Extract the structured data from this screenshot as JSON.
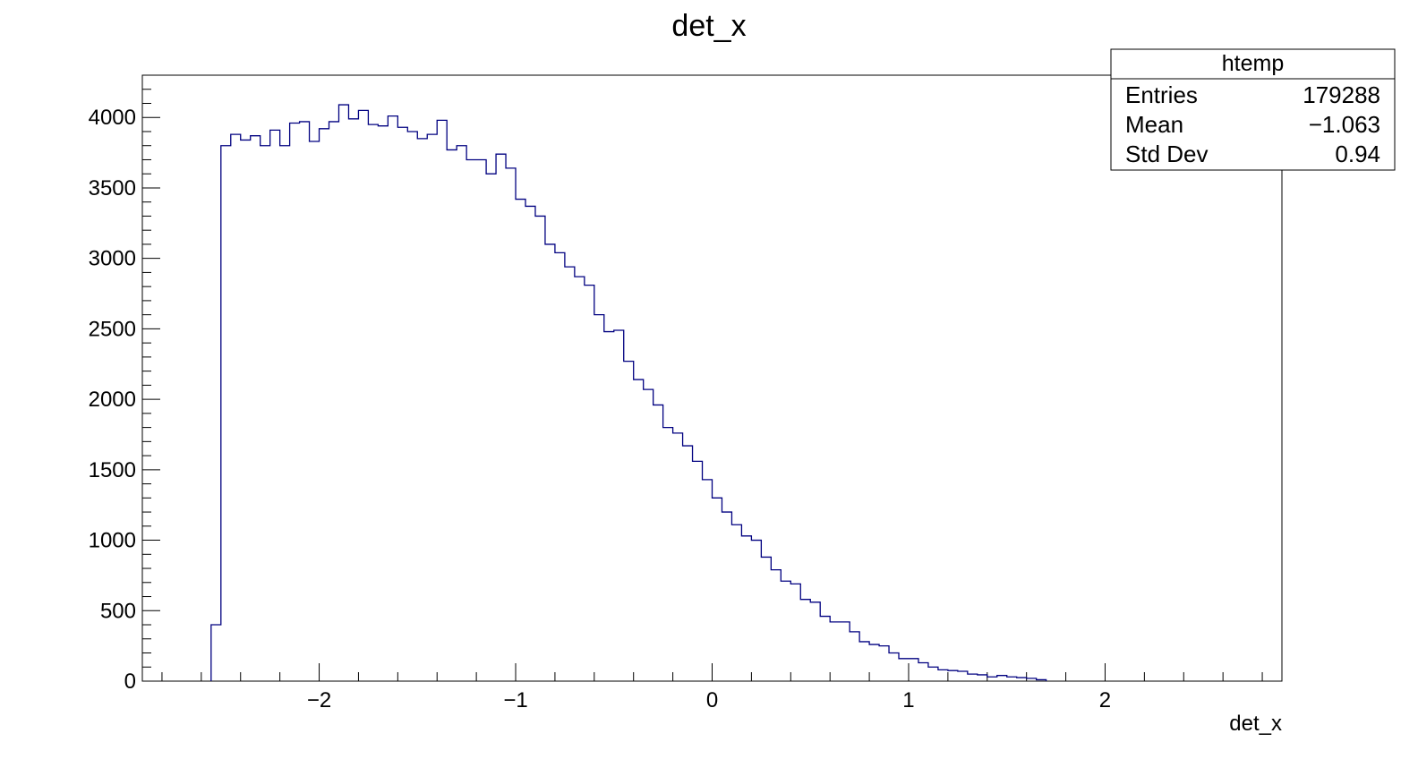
{
  "chart_data": {
    "type": "bar",
    "title": "det_x",
    "xlabel": "det_x",
    "ylabel": "",
    "x_range": [
      -2.9,
      2.9
    ],
    "ylim": [
      0,
      4300
    ],
    "x_ticks": [
      -2,
      -1,
      0,
      1,
      2
    ],
    "x_tick_labels": [
      "−2",
      "−1",
      "0",
      "1",
      "2"
    ],
    "y_ticks": [
      0,
      500,
      1000,
      1500,
      2000,
      2500,
      3000,
      3500,
      4000
    ],
    "y_tick_labels": [
      "0",
      "500",
      "1000",
      "1500",
      "2000",
      "2500",
      "3000",
      "3500",
      "4000"
    ],
    "bin_start": -2.55,
    "bin_width": 0.05,
    "values": [
      400,
      3800,
      3880,
      3840,
      3870,
      3800,
      3910,
      3800,
      3960,
      3970,
      3830,
      3920,
      3970,
      4090,
      3990,
      4050,
      3950,
      3940,
      4010,
      3930,
      3900,
      3850,
      3880,
      3980,
      3770,
      3800,
      3700,
      3700,
      3600,
      3740,
      3640,
      3420,
      3370,
      3300,
      3100,
      3040,
      2940,
      2870,
      2810,
      2600,
      2480,
      2490,
      2270,
      2140,
      2070,
      1960,
      1800,
      1760,
      1670,
      1560,
      1430,
      1300,
      1200,
      1110,
      1030,
      1000,
      880,
      790,
      710,
      690,
      580,
      560,
      460,
      420,
      420,
      350,
      280,
      260,
      250,
      200,
      160,
      160,
      130,
      100,
      80,
      75,
      70,
      50,
      45,
      30,
      40,
      30,
      25,
      20,
      10
    ],
    "line_color": "#000080",
    "stats_box": {
      "title": "htemp",
      "rows": [
        {
          "label": "Entries",
          "value": "179288"
        },
        {
          "label": "Mean",
          "value": "−1.063"
        },
        {
          "label": "Std Dev",
          "value": "0.94"
        }
      ]
    }
  }
}
